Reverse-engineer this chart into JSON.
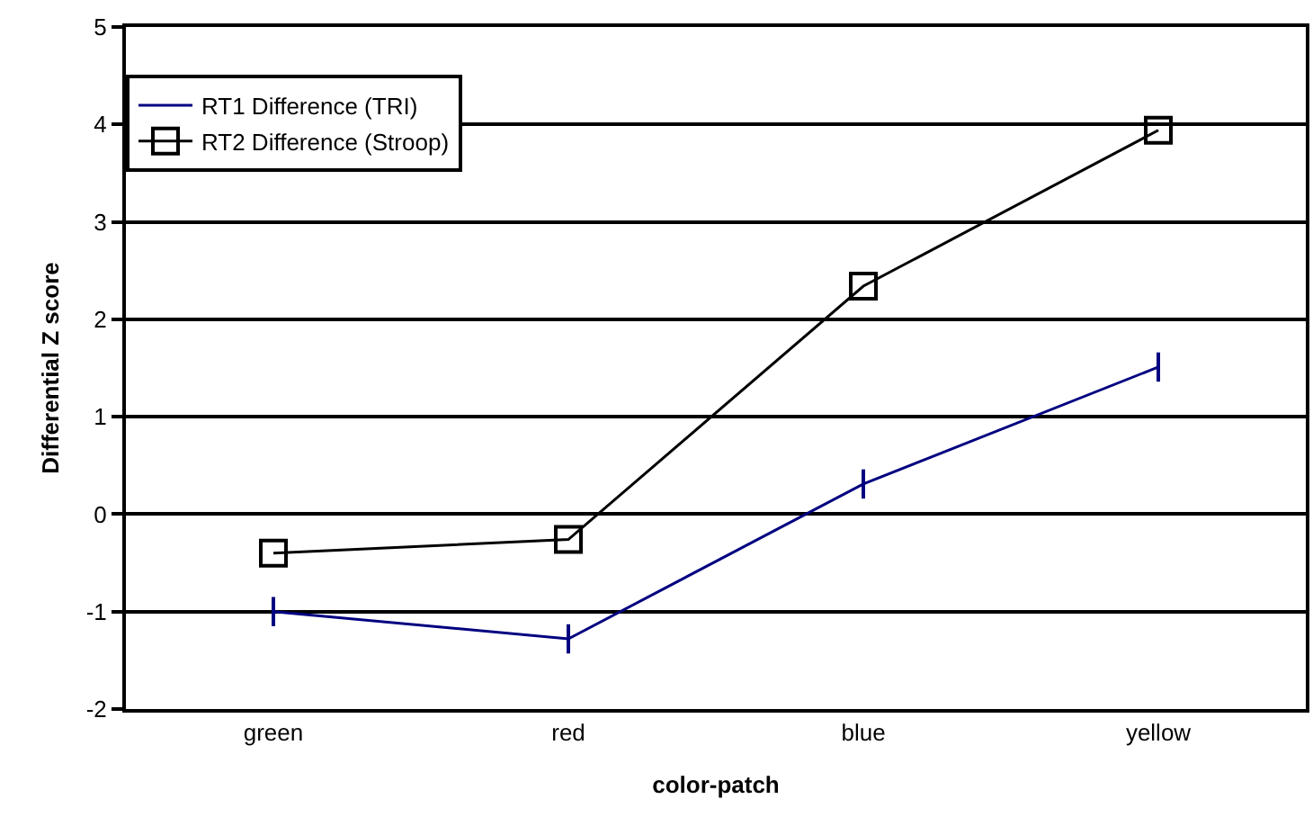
{
  "chart_data": {
    "type": "line",
    "xlabel": "color-patch",
    "ylabel": "Differential Z score",
    "categories": [
      "green",
      "red",
      "blue",
      "yellow"
    ],
    "series": [
      {
        "name": "RT1 Difference (TRI)",
        "color": "#000080",
        "values": [
          -1.0,
          -1.28,
          0.31,
          1.51
        ],
        "errors": [
          0.15,
          0.15,
          0.15,
          0.15
        ],
        "marker": "none"
      },
      {
        "name": "RT2 Difference (Stroop)",
        "color": "#000000",
        "values": [
          -0.4,
          -0.26,
          2.34,
          3.94
        ],
        "marker": "square"
      }
    ],
    "ylim": [
      -2,
      5
    ],
    "yticks": [
      -2,
      -1,
      0,
      1,
      2,
      3,
      4,
      5
    ],
    "grid": "y",
    "legend": "top left"
  }
}
